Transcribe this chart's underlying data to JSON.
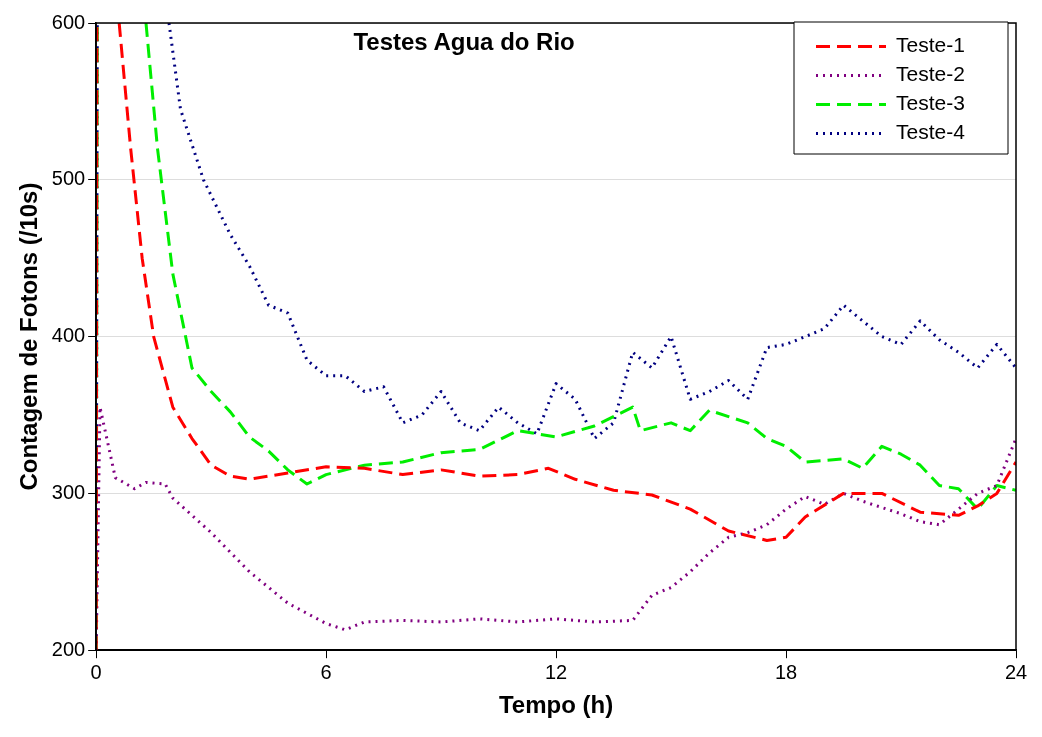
{
  "chart_data": {
    "type": "line",
    "title": "Testes Agua do Rio",
    "xlabel": "Tempo (h)",
    "ylabel": "Contagem de Fotons (/10s)",
    "xlim": [
      0,
      24
    ],
    "xticks": [
      0,
      6,
      12,
      18,
      24
    ],
    "ylim": [
      200,
      600
    ],
    "yticks": [
      200,
      300,
      400,
      500,
      600
    ],
    "grid": "y",
    "legend": "top right",
    "marker": "none",
    "series": [
      {
        "name": "Teste-1",
        "color": "#ff0000",
        "line_style": "dashed",
        "x": [
          0,
          0.02,
          0.3,
          0.6,
          0.9,
          1.2,
          1.5,
          2,
          2.5,
          3,
          3.5,
          4,
          5,
          6,
          7,
          8,
          9,
          10,
          11,
          11.8,
          12.5,
          13.5,
          14.5,
          15.5,
          16.5,
          17.5,
          18,
          18.5,
          19.5,
          20.5,
          21.5,
          22.5,
          23,
          23.5,
          24
        ],
        "values": [
          200,
          600,
          null,
          600,
          520,
          450,
          400,
          355,
          335,
          318,
          311,
          309,
          313,
          317,
          316,
          312,
          315,
          311,
          312,
          316,
          309,
          302,
          299,
          290,
          276,
          270,
          272,
          285,
          300,
          300,
          288,
          286,
          292,
          300,
          320
        ]
      },
      {
        "name": "Teste-2",
        "color": "#800080",
        "line_style": "dotted",
        "x": [
          0,
          0.1,
          0.5,
          1,
          1.3,
          1.8,
          2,
          3,
          4,
          5,
          6,
          6.5,
          7,
          8,
          9,
          10,
          11,
          12,
          13,
          14,
          14.5,
          15,
          15.5,
          16,
          16.5,
          17,
          17.5,
          18,
          18.5,
          19,
          19.5,
          20,
          21,
          21.5,
          22,
          22.5,
          23,
          23.5,
          24
        ],
        "values": [
          200,
          355,
          310,
          303,
          307,
          306,
          297,
          275,
          250,
          230,
          217,
          213,
          218,
          219,
          218,
          220,
          218,
          220,
          218,
          219,
          235,
          240,
          250,
          262,
          272,
          275,
          280,
          290,
          298,
          293,
          300,
          295,
          287,
          282,
          280,
          290,
          300,
          305,
          335
        ]
      },
      {
        "name": "Teste-3",
        "color": "#00ee00",
        "line_style": "dashed",
        "x": [
          0,
          0.03,
          0.6,
          1.3,
          1.6,
          2,
          2.5,
          3,
          3.5,
          4,
          4.5,
          5,
          5.5,
          6,
          7,
          8,
          9,
          10,
          11,
          12,
          13,
          14,
          14.2,
          15,
          15.5,
          16,
          17,
          17.5,
          18,
          18.5,
          19.5,
          20,
          20.5,
          21,
          21.5,
          22,
          22.5,
          23,
          23.5,
          24
        ],
        "values": [
          200,
          600,
          null,
          600,
          520,
          440,
          380,
          365,
          352,
          336,
          327,
          315,
          306,
          312,
          318,
          320,
          326,
          328,
          340,
          336,
          343,
          355,
          340,
          345,
          340,
          353,
          345,
          335,
          330,
          320,
          322,
          316,
          330,
          325,
          318,
          305,
          303,
          290,
          305,
          302
        ]
      },
      {
        "name": "Teste-4",
        "color": "#000080",
        "line_style": "dotted",
        "x": [
          0,
          0.03,
          1,
          1.9,
          2.2,
          2.8,
          3.5,
          4,
          4.5,
          5,
          5.5,
          6,
          6.5,
          7,
          7.5,
          8,
          8.5,
          9,
          9.5,
          10,
          10.5,
          11,
          11.5,
          12,
          12.5,
          13,
          13.5,
          14,
          14.5,
          15,
          15.5,
          16,
          16.5,
          17,
          17.5,
          18,
          19,
          19.5,
          20,
          20.5,
          21,
          21.5,
          22,
          22.5,
          23,
          23.5,
          24
        ],
        "values": [
          200,
          600,
          null,
          600,
          545,
          500,
          465,
          445,
          420,
          415,
          385,
          375,
          375,
          365,
          368,
          345,
          350,
          365,
          345,
          340,
          355,
          345,
          338,
          370,
          360,
          335,
          345,
          390,
          380,
          400,
          360,
          365,
          372,
          360,
          393,
          395,
          405,
          420,
          410,
          400,
          395,
          410,
          398,
          390,
          380,
          395,
          380
        ]
      }
    ]
  }
}
